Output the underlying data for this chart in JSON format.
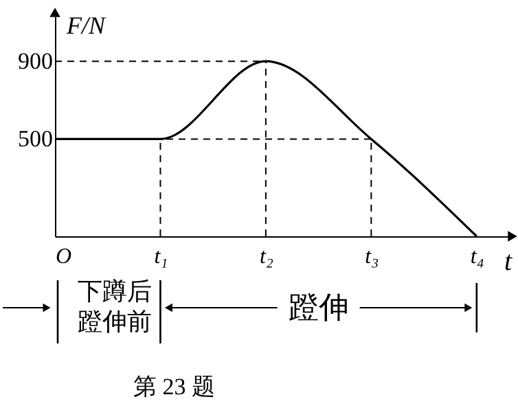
{
  "chart_data": {
    "type": "line",
    "xlabel": "t",
    "ylabel": "F/N",
    "categories": [
      "O",
      "t₁",
      "t₂",
      "t₃",
      "t₄"
    ],
    "values": [
      500,
      500,
      900,
      500,
      0
    ],
    "color": "#000000",
    "ylim": [
      0,
      1130
    ],
    "yticks": [
      500,
      900
    ],
    "ref_lines": [
      {
        "axis": "y",
        "value": 900,
        "line_style": "dashed"
      },
      {
        "axis": "y",
        "value": 500,
        "line_style": "dashed"
      },
      {
        "axis": "x",
        "value": "t₁",
        "line_style": "dashed"
      },
      {
        "axis": "x",
        "value": "t₂",
        "line_style": "dashed"
      },
      {
        "axis": "x",
        "value": "t₃",
        "line_style": "dashed"
      }
    ],
    "annotations": [
      "下蹲后蹬伸前",
      "蹬伸",
      "第 23 题"
    ],
    "grid": false
  }
}
